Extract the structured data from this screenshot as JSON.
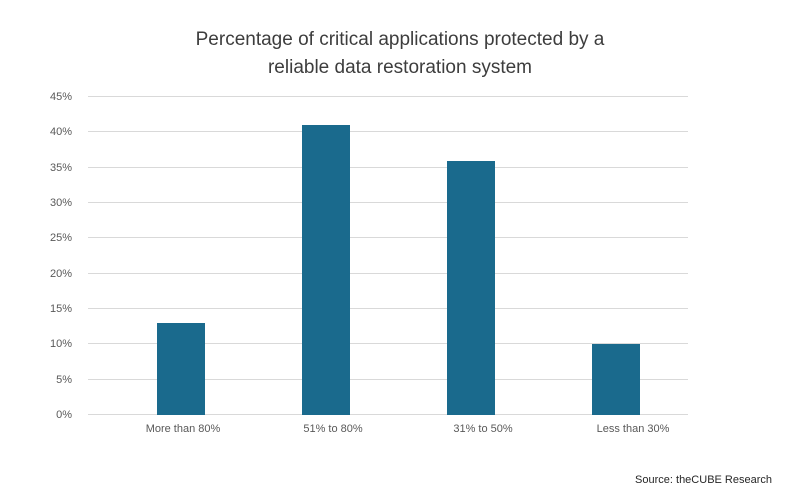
{
  "title_line1": "Percentage of critical applications protected by a",
  "title_line2": "reliable data restoration system",
  "source": "Source: theCUBE Research",
  "chart_data": {
    "type": "bar",
    "title": "Percentage of critical applications protected by a reliable data restoration system",
    "categories": [
      "More than 80%",
      "51% to 80%",
      "31% to 50%",
      "Less than 30%"
    ],
    "values": [
      13,
      41,
      36,
      10
    ],
    "xlabel": "",
    "ylabel": "",
    "ylim": [
      0,
      45
    ],
    "ytick_step": 5,
    "ytick_suffix": "%",
    "grid": true,
    "legend": false,
    "bar_color": "#1a6a8d",
    "gridline_color": "#d9d9d9",
    "tick_label_color": "#595959",
    "title_color": "#3d3d3d"
  }
}
